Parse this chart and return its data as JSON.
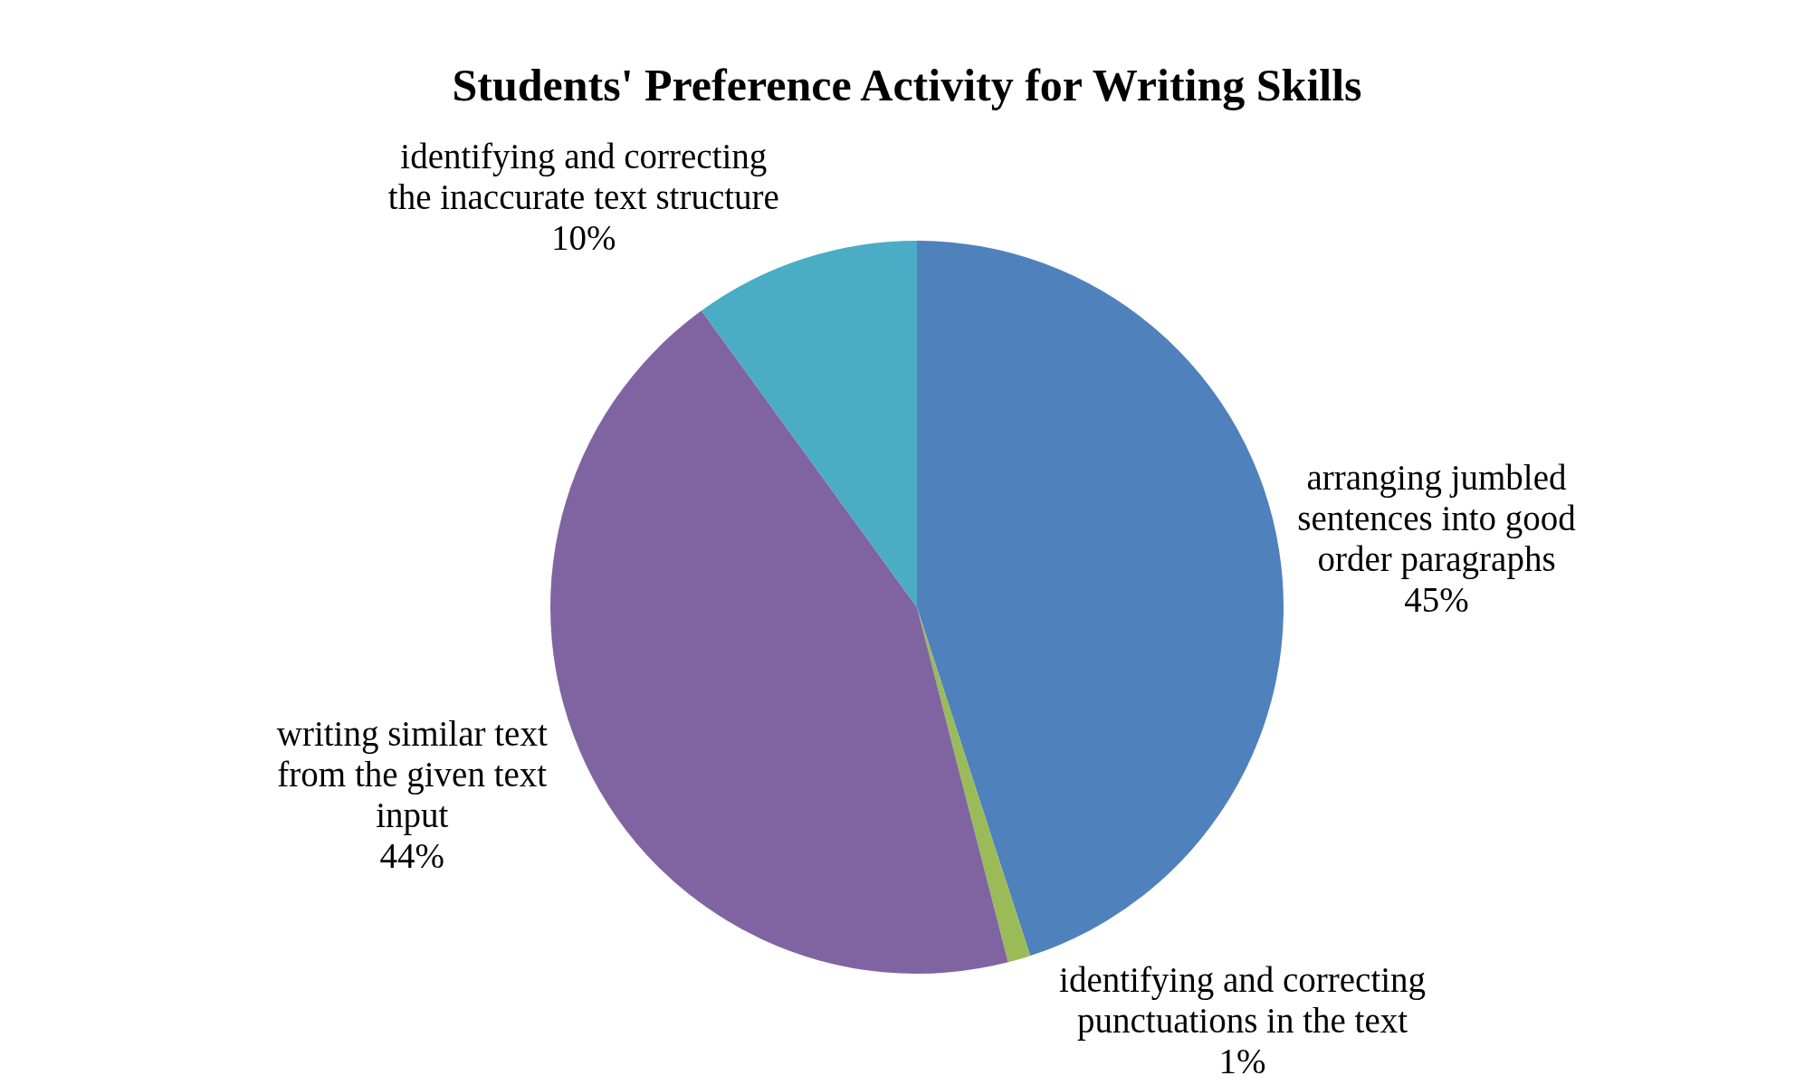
{
  "chart_data": {
    "type": "pie",
    "title": "Students' Preference Activity for Writing Skills",
    "categories": [
      "arranging jumbled sentences into good order paragraphs",
      "identifying and correcting punctuations in the text",
      "writing similar text from the given text input",
      "identifying and correcting the inaccurate text structure"
    ],
    "values": [
      45,
      1,
      44,
      10
    ],
    "colors": [
      "#4f81bd",
      "#9bbb59",
      "#8064a2",
      "#4bacc6"
    ],
    "value_labels": [
      "45%",
      "1%",
      "44%",
      "10%"
    ],
    "legend": false
  }
}
